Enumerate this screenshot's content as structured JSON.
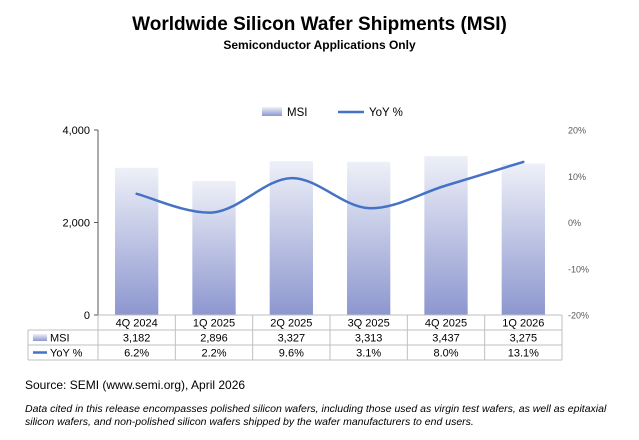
{
  "chart_data": {
    "type": "bar",
    "title": "Worldwide Silicon Wafer Shipments (MSI)",
    "subtitle": "Semiconductor Applications Only",
    "categories": [
      "4Q 2024",
      "1Q 2025",
      "2Q 2025",
      "3Q 2025",
      "4Q 2025",
      "1Q 2026"
    ],
    "series": [
      {
        "name": "MSI",
        "type": "bar",
        "axis": "left",
        "values": [
          3182,
          2896,
          3327,
          3313,
          3437,
          3275
        ],
        "labels": [
          "3,182",
          "2,896",
          "3,327",
          "3,313",
          "3,437",
          "3,275"
        ]
      },
      {
        "name": "YoY %",
        "type": "line",
        "axis": "right",
        "values": [
          6.2,
          2.2,
          9.6,
          3.1,
          8.0,
          13.1
        ],
        "labels": [
          "6.2%",
          "2.2%",
          "9.6%",
          "3.1%",
          "8.0%",
          "13.1%"
        ]
      }
    ],
    "y_left": {
      "lim": [
        0,
        4000
      ],
      "ticks": [
        0,
        2000,
        4000
      ],
      "tick_labels": [
        "0",
        "2,000",
        "4,000"
      ]
    },
    "y_right": {
      "lim": [
        -20,
        20
      ],
      "ticks": [
        20,
        10,
        0,
        -10,
        -20
      ],
      "tick_labels": [
        "20%",
        "10%",
        "0%",
        "-10%",
        "-20%"
      ]
    },
    "legend_position": "top",
    "grid": false,
    "data_table": true
  },
  "colors": {
    "bar_top": "#eef0f8",
    "bar_bottom": "#8d97cf",
    "line": "#4472c4",
    "axis": "#595959",
    "table_border": "#bfbfbf"
  },
  "source": "Source: SEMI (www.semi.org), April 2026",
  "footnote": "Data cited in this release encompasses polished silicon wafers, including those used as virgin test wafers, as well as epitaxial silicon wafers, and non-polished silicon wafers shipped by the wafer manufacturers to end users."
}
